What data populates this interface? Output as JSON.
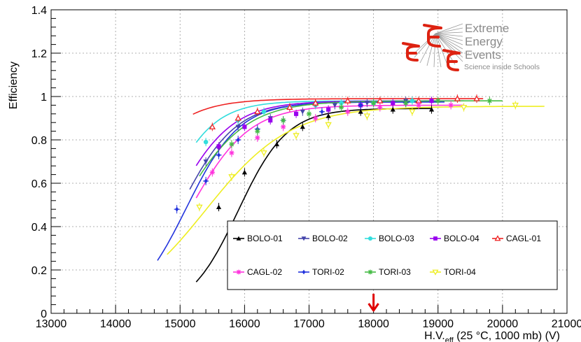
{
  "chart_data": {
    "type": "line",
    "title": "",
    "xlabel": "H.V.",
    "xlabel_sub": "eff",
    "xlabel_rest": " (25 °C, 1000 mb) (V)",
    "ylabel": "Efficiency",
    "xlim": [
      13000,
      21000
    ],
    "ylim": [
      0,
      1.4
    ],
    "x_ticks": [
      13000,
      14000,
      15000,
      16000,
      17000,
      18000,
      19000,
      20000,
      21000
    ],
    "x_tick_labels": [
      "13000",
      "14000",
      "15000",
      "16000",
      "17000",
      "18000",
      "19000",
      "20000",
      "21000"
    ],
    "y_ticks": [
      0,
      0.2,
      0.4,
      0.6,
      0.8,
      1,
      1.2,
      1.4
    ],
    "y_tick_labels": [
      "0",
      "0.2",
      "0.4",
      "0.6",
      "0.8",
      "1",
      "1.2",
      "1.4"
    ],
    "grid": true,
    "legend_position": "bottom-right",
    "annotation": {
      "type": "arrow",
      "x": 18000,
      "color": "#e00000"
    },
    "series": [
      {
        "name": "BOLO-01",
        "color": "#000000",
        "marker": "triangle-up",
        "x": [
          15600,
          16000,
          16500,
          16900,
          17300,
          17800,
          18300,
          18900
        ],
        "y": [
          0.49,
          0.65,
          0.78,
          0.86,
          0.91,
          0.93,
          0.94,
          0.94
        ],
        "fit": {
          "x0": 15250,
          "x1": 18900,
          "plateau": 0.945,
          "mid": 15900,
          "scale": 380
        }
      },
      {
        "name": "BOLO-02",
        "color": "#4444aa",
        "marker": "triangle-down",
        "x": [
          15400,
          15600,
          15900,
          16400,
          16900,
          17400,
          17900,
          18500
        ],
        "y": [
          0.7,
          0.76,
          0.86,
          0.9,
          0.93,
          0.96,
          0.97,
          0.98
        ],
        "fit": {
          "x0": 15150,
          "x1": 19000,
          "plateau": 0.975,
          "mid": 15000,
          "scale": 430
        }
      },
      {
        "name": "BOLO-03",
        "color": "#33dddd",
        "marker": "circle",
        "x": [
          15400,
          15900,
          16300,
          16700,
          17100,
          17500,
          18000,
          18600
        ],
        "y": [
          0.79,
          0.89,
          0.93,
          0.95,
          0.96,
          0.97,
          0.97,
          0.98
        ],
        "fit": {
          "x0": 15250,
          "x1": 19000,
          "plateau": 0.98,
          "mid": 14700,
          "scale": 390
        }
      },
      {
        "name": "BOLO-04",
        "color": "#9900ee",
        "marker": "square",
        "x": [
          15600,
          16000,
          16400,
          16800,
          17300,
          17800,
          18300,
          18900
        ],
        "y": [
          0.77,
          0.86,
          0.89,
          0.92,
          0.94,
          0.96,
          0.97,
          0.98
        ],
        "fit": {
          "x0": 15250,
          "x1": 19400,
          "plateau": 0.98,
          "mid": 14880,
          "scale": 450
        }
      },
      {
        "name": "CAGL-01",
        "color": "#ee2222",
        "marker": "triangle-up-open",
        "x": [
          15500,
          15900,
          16200,
          16700,
          17100,
          17600,
          18100,
          18700,
          19300,
          19600
        ],
        "y": [
          0.86,
          0.9,
          0.93,
          0.95,
          0.97,
          0.98,
          0.98,
          0.98,
          0.99,
          0.99
        ],
        "fit": {
          "x0": 15200,
          "x1": 19700,
          "plateau": 0.99,
          "mid": 14000,
          "scale": 470
        }
      },
      {
        "name": "CAGL-02",
        "color": "#ff33dd",
        "marker": "star",
        "x": [
          15500,
          15800,
          16200,
          16600,
          17100,
          17600,
          18100,
          18700,
          19200
        ],
        "y": [
          0.65,
          0.74,
          0.81,
          0.86,
          0.9,
          0.93,
          0.95,
          0.96,
          0.96
        ],
        "fit": {
          "x0": 15250,
          "x1": 19400,
          "plateau": 0.96,
          "mid": 15150,
          "scale": 460
        }
      },
      {
        "name": "TORI-02",
        "color": "#2233dd",
        "marker": "cross-diamond",
        "x": [
          14950,
          15400,
          15600,
          15900,
          16200,
          16600,
          17200,
          17800,
          18500
        ],
        "y": [
          0.48,
          0.61,
          0.73,
          0.8,
          0.85,
          0.89,
          0.93,
          0.96,
          0.97
        ],
        "fit": {
          "x0": 14650,
          "x1": 19100,
          "plateau": 0.975,
          "mid": 15100,
          "scale": 410
        }
      },
      {
        "name": "TORI-03",
        "color": "#44bb44",
        "marker": "star",
        "x": [
          15800,
          16200,
          16600,
          17000,
          17500,
          18000,
          18500,
          19000,
          19800
        ],
        "y": [
          0.78,
          0.84,
          0.89,
          0.92,
          0.95,
          0.97,
          0.97,
          0.98,
          0.98
        ],
        "fit": {
          "x0": 15300,
          "x1": 20000,
          "plateau": 0.98,
          "mid": 15000,
          "scale": 500
        }
      },
      {
        "name": "TORI-04",
        "color": "#eeee22",
        "marker": "triangle-down-open",
        "x": [
          15300,
          15800,
          16300,
          16800,
          17300,
          17900,
          18600,
          19400,
          20200
        ],
        "y": [
          0.49,
          0.63,
          0.74,
          0.82,
          0.87,
          0.91,
          0.93,
          0.95,
          0.96
        ],
        "fit": {
          "x0": 14800,
          "x1": 20650,
          "plateau": 0.955,
          "mid": 15400,
          "scale": 650
        }
      }
    ]
  },
  "logo": {
    "line1": "Extreme",
    "line2": "Energy",
    "line3": "Events",
    "line4": "Science inside Schools",
    "mark_color": "#dd2211"
  }
}
